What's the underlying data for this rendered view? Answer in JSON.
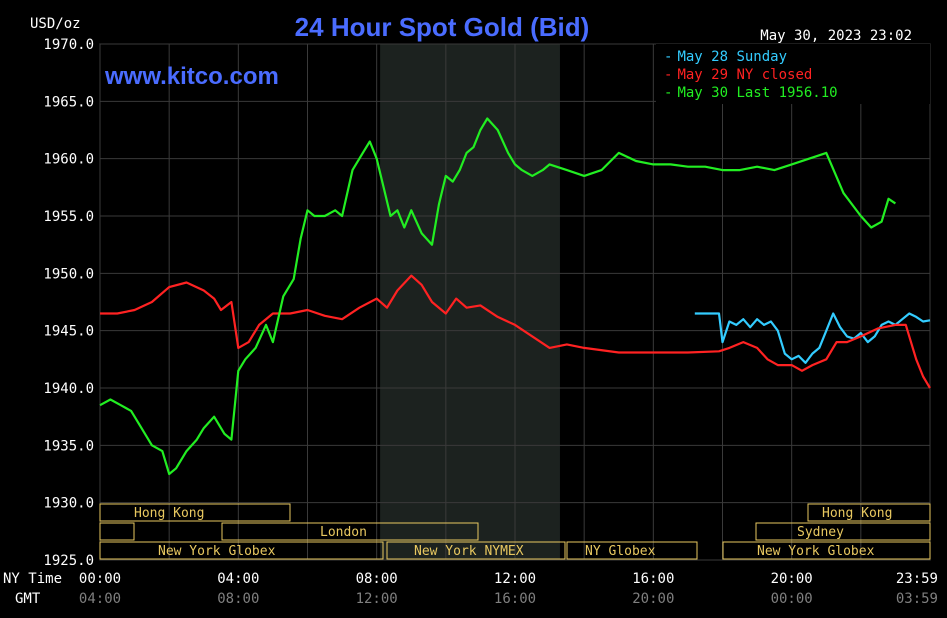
{
  "header": {
    "units": "USD/oz",
    "title": "24 Hour Spot Gold (Bid)",
    "timestamp": "May 30, 2023 23:02",
    "website": "www.kitco.com"
  },
  "legend": [
    {
      "text": "May 28 Sunday",
      "color": "#33ccff"
    },
    {
      "text": "May 29 NY closed",
      "color": "#ff2222"
    },
    {
      "text": "May 30 Last 1956.10",
      "color": "#22ee22"
    }
  ],
  "axis": {
    "ny_label": "NY Time",
    "gmt_label": "GMT",
    "ny_ticks": [
      "00:00",
      "04:00",
      "08:00",
      "12:00",
      "16:00",
      "20:00",
      "23:59"
    ],
    "gmt_ticks": [
      "04:00",
      "08:00",
      "12:00",
      "16:00",
      "20:00",
      "00:00",
      "03:59"
    ]
  },
  "markets": {
    "hong_kong_left": "Hong Kong",
    "london": "London",
    "ny_globex_left": "New York Globex",
    "ny_nymex": "New York NYMEX",
    "ny_globex_mid": "NY Globex",
    "hong_kong_right": "Hong Kong",
    "sydney": "Sydney",
    "ny_globex_right": "New York Globex"
  },
  "chart_data": {
    "type": "line",
    "title": "24 Hour Spot Gold (Bid)",
    "ylabel": "USD/oz",
    "ylim": [
      1925,
      1970
    ],
    "xlim_hours": [
      0,
      24
    ],
    "y_ticks": [
      "1970.0",
      "1965.0",
      "1960.0",
      "1955.0",
      "1950.0",
      "1945.0",
      "1940.0",
      "1935.0",
      "1930.0",
      "1925.0"
    ],
    "grid": true,
    "legend_position": "top-right",
    "shaded_region_hours": [
      8.1,
      13.3
    ],
    "series": [
      {
        "name": "May 28 Sunday",
        "color": "#33ccff",
        "x": [
          17.2,
          17.9,
          18.0,
          18.2,
          18.4,
          18.6,
          18.8,
          19.0,
          19.2,
          19.4,
          19.6,
          19.8,
          20.0,
          20.2,
          20.4,
          20.6,
          20.8,
          21.0,
          21.2,
          21.4,
          21.6,
          21.8,
          22.0,
          22.2,
          22.4,
          22.6,
          22.8,
          23.0,
          23.2,
          23.4,
          23.6,
          23.8,
          24.0
        ],
        "y": [
          1946.5,
          1946.5,
          1944.0,
          1945.8,
          1945.5,
          1946.0,
          1945.3,
          1946.0,
          1945.5,
          1945.8,
          1945.0,
          1943.0,
          1942.5,
          1942.8,
          1942.2,
          1943.0,
          1943.5,
          1945.0,
          1946.5,
          1945.3,
          1944.5,
          1944.3,
          1944.8,
          1944.0,
          1944.5,
          1945.5,
          1945.8,
          1945.5,
          1946.0,
          1946.5,
          1946.2,
          1945.8,
          1945.9
        ]
      },
      {
        "name": "May 29 NY closed",
        "color": "#ff2222",
        "x": [
          0.0,
          0.5,
          1.0,
          1.5,
          2.0,
          2.5,
          3.0,
          3.3,
          3.5,
          3.8,
          4.0,
          4.3,
          4.6,
          5.0,
          5.5,
          6.0,
          6.5,
          7.0,
          7.5,
          8.0,
          8.3,
          8.6,
          9.0,
          9.3,
          9.6,
          10.0,
          10.3,
          10.6,
          11.0,
          11.5,
          12.0,
          12.5,
          13.0,
          13.5,
          14.0,
          15.0,
          16.0,
          17.0,
          17.9,
          18.2,
          18.6,
          19.0,
          19.3,
          19.6,
          20.0,
          20.3,
          20.6,
          21.0,
          21.3,
          21.6,
          22.0,
          22.5,
          23.0,
          23.3,
          23.6,
          23.8,
          24.0
        ],
        "y": [
          1946.5,
          1946.5,
          1946.8,
          1947.5,
          1948.8,
          1949.2,
          1948.5,
          1947.8,
          1946.8,
          1947.5,
          1943.5,
          1944.0,
          1945.5,
          1946.5,
          1946.5,
          1946.8,
          1946.3,
          1946.0,
          1947.0,
          1947.8,
          1947.0,
          1948.5,
          1949.8,
          1949.0,
          1947.5,
          1946.5,
          1947.8,
          1947.0,
          1947.2,
          1946.2,
          1945.5,
          1944.5,
          1943.5,
          1943.8,
          1943.5,
          1943.1,
          1943.1,
          1943.1,
          1943.2,
          1943.5,
          1944.0,
          1943.5,
          1942.5,
          1942.0,
          1942.0,
          1941.5,
          1942.0,
          1942.5,
          1944.0,
          1944.0,
          1944.5,
          1945.2,
          1945.5,
          1945.5,
          1942.5,
          1941.0,
          1940.0
        ]
      },
      {
        "name": "May 30 Last 1956.10",
        "color": "#22ee22",
        "x": [
          0.0,
          0.3,
          0.6,
          0.9,
          1.2,
          1.5,
          1.8,
          2.0,
          2.2,
          2.5,
          2.8,
          3.0,
          3.3,
          3.6,
          3.8,
          4.0,
          4.2,
          4.5,
          4.8,
          5.0,
          5.3,
          5.6,
          5.8,
          6.0,
          6.2,
          6.5,
          6.8,
          7.0,
          7.3,
          7.6,
          7.8,
          8.0,
          8.2,
          8.4,
          8.6,
          8.8,
          9.0,
          9.3,
          9.6,
          9.8,
          10.0,
          10.2,
          10.4,
          10.6,
          10.8,
          11.0,
          11.2,
          11.5,
          11.8,
          12.0,
          12.2,
          12.5,
          12.8,
          13.0,
          13.5,
          14.0,
          14.5,
          15.0,
          15.5,
          16.0,
          16.5,
          17.0,
          17.5,
          18.0,
          18.5,
          19.0,
          19.5,
          20.0,
          20.5,
          21.0,
          21.5,
          22.0,
          22.3,
          22.6,
          22.8,
          23.0
        ],
        "y": [
          1938.5,
          1939.0,
          1938.5,
          1938.0,
          1936.5,
          1935.0,
          1934.5,
          1932.5,
          1933.0,
          1934.5,
          1935.5,
          1936.5,
          1937.5,
          1936.0,
          1935.5,
          1941.5,
          1942.5,
          1943.5,
          1945.5,
          1944.0,
          1948.0,
          1949.5,
          1953.0,
          1955.5,
          1955.0,
          1955.0,
          1955.5,
          1955.0,
          1959.0,
          1960.5,
          1961.5,
          1960.0,
          1957.5,
          1955.0,
          1955.5,
          1954.0,
          1955.5,
          1953.5,
          1952.5,
          1956.0,
          1958.5,
          1958.0,
          1959.0,
          1960.5,
          1961.0,
          1962.5,
          1963.5,
          1962.5,
          1960.5,
          1959.5,
          1959.0,
          1958.5,
          1959.0,
          1959.5,
          1959.0,
          1958.5,
          1959.0,
          1960.5,
          1959.8,
          1959.5,
          1959.5,
          1959.3,
          1959.3,
          1959.0,
          1959.0,
          1959.3,
          1959.0,
          1959.5,
          1960.0,
          1960.5,
          1957.0,
          1955.0,
          1954.0,
          1954.5,
          1956.5,
          1956.1
        ]
      }
    ]
  }
}
